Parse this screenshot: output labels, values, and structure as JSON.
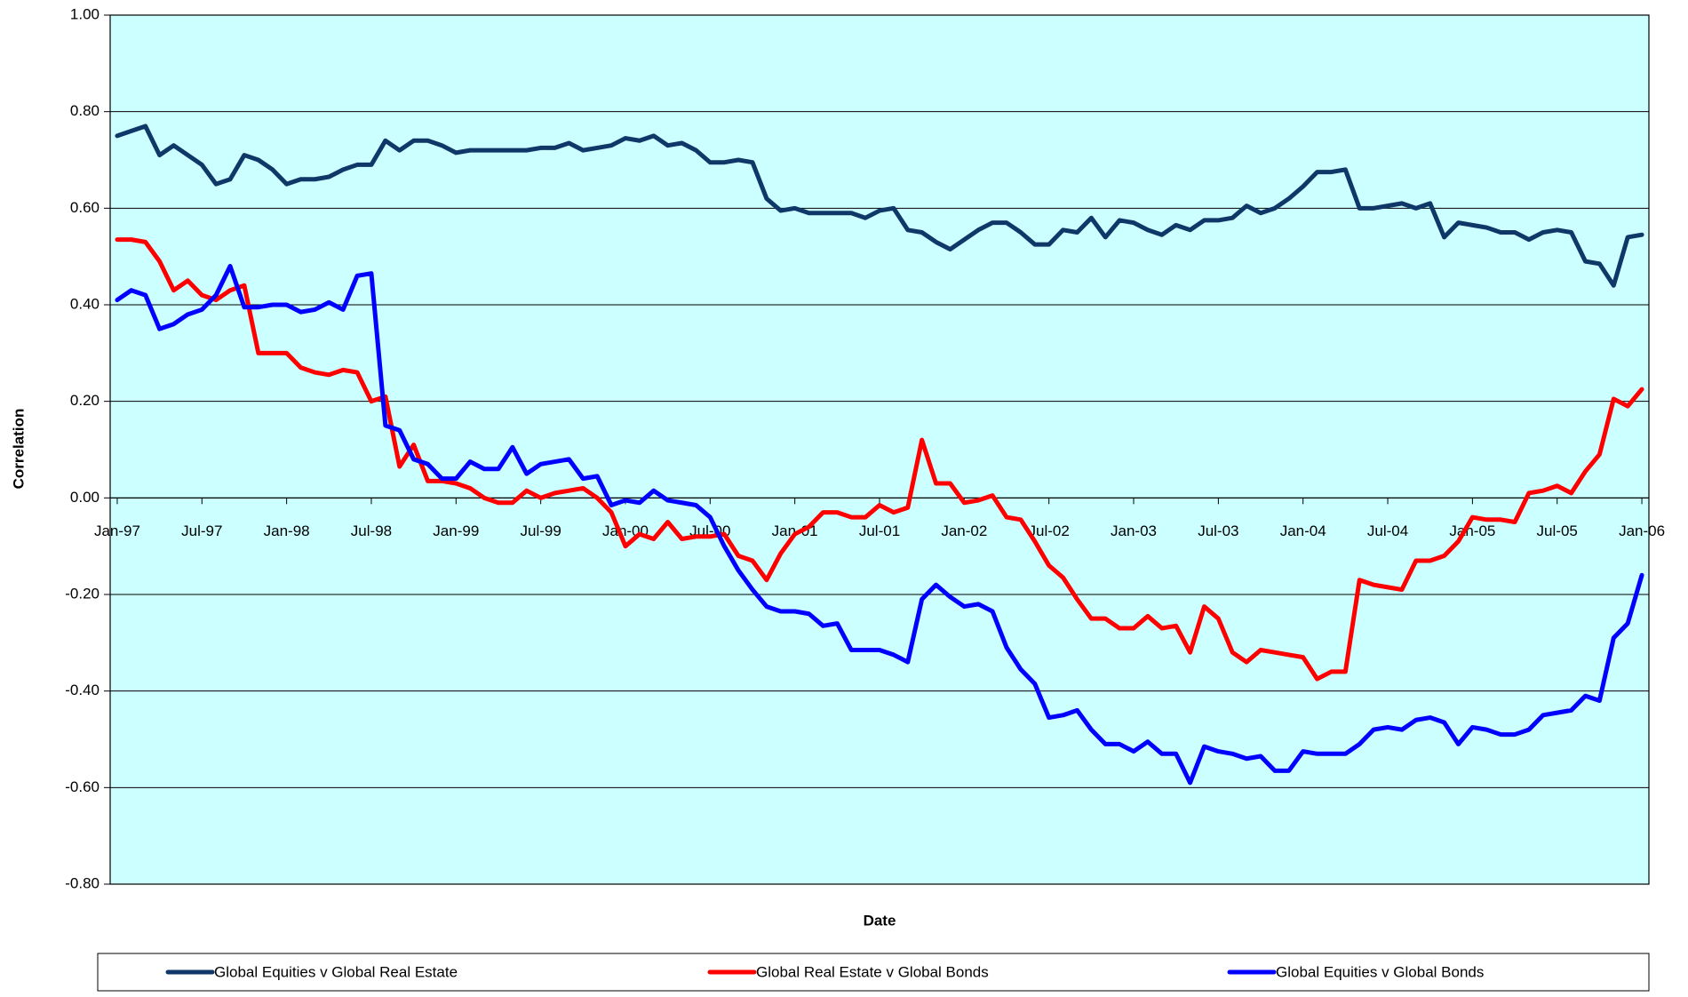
{
  "chart_data": {
    "type": "line",
    "x_label": "Date",
    "y_label": "Correlation",
    "ylim": [
      -0.8,
      1.0
    ],
    "yticks": [
      {
        "value": -0.8,
        "label": "-0.80"
      },
      {
        "value": -0.6,
        "label": "-0.60"
      },
      {
        "value": -0.4,
        "label": "-0.40"
      },
      {
        "value": -0.2,
        "label": "-0.20"
      },
      {
        "value": 0,
        "label": "0.00"
      },
      {
        "value": 0.2,
        "label": "0.20"
      },
      {
        "value": 0.4,
        "label": "0.40"
      },
      {
        "value": 0.6,
        "label": "0.60"
      },
      {
        "value": 0.8,
        "label": "0.80"
      },
      {
        "value": 1.0,
        "label": "1.00"
      }
    ],
    "grid": true,
    "legend": "bottom",
    "background": "#ccffff",
    "categories": [
      "Jan-97",
      null,
      null,
      null,
      null,
      null,
      "Jul-97",
      null,
      null,
      null,
      null,
      null,
      "Jan-98",
      null,
      null,
      null,
      null,
      null,
      "Jul-98",
      null,
      null,
      null,
      null,
      null,
      "Jan-99",
      null,
      null,
      null,
      null,
      null,
      "Jul-99",
      null,
      null,
      null,
      null,
      null,
      "Jan-00",
      null,
      null,
      null,
      null,
      null,
      "Jul-00",
      null,
      null,
      null,
      null,
      null,
      "Jan-01",
      null,
      null,
      null,
      null,
      null,
      "Jul-01",
      null,
      null,
      null,
      null,
      null,
      "Jan-02",
      null,
      null,
      null,
      null,
      null,
      "Jul-02",
      null,
      null,
      null,
      null,
      null,
      "Jan-03",
      null,
      null,
      null,
      null,
      null,
      "Jul-03",
      null,
      null,
      null,
      null,
      null,
      "Jan-04",
      null,
      null,
      null,
      null,
      null,
      "Jul-04",
      null,
      null,
      null,
      null,
      null,
      "Jan-05",
      null,
      null,
      null,
      null,
      null,
      "Jul-05",
      null,
      null,
      null,
      null,
      null,
      "Jan-06"
    ],
    "series": [
      {
        "name": "Global Equities v Global Real Estate",
        "color": "#0f3868",
        "values": [
          0.75,
          0.76,
          0.77,
          0.71,
          0.73,
          0.71,
          0.69,
          0.65,
          0.66,
          0.71,
          0.7,
          0.68,
          0.65,
          0.66,
          0.66,
          0.665,
          0.68,
          0.69,
          0.69,
          0.74,
          0.72,
          0.74,
          0.74,
          0.73,
          0.715,
          0.72,
          0.72,
          0.72,
          0.72,
          0.72,
          0.725,
          0.725,
          0.735,
          0.72,
          0.725,
          0.73,
          0.745,
          0.74,
          0.75,
          0.73,
          0.735,
          0.72,
          0.695,
          0.695,
          0.7,
          0.695,
          0.62,
          0.595,
          0.6,
          0.59,
          0.59,
          0.59,
          0.59,
          0.58,
          0.595,
          0.6,
          0.555,
          0.55,
          0.53,
          0.515,
          0.535,
          0.555,
          0.57,
          0.57,
          0.55,
          0.525,
          0.525,
          0.555,
          0.55,
          0.58,
          0.54,
          0.575,
          0.57,
          0.555,
          0.545,
          0.565,
          0.555,
          0.575,
          0.575,
          0.58,
          0.605,
          0.59,
          0.6,
          0.62,
          0.645,
          0.675,
          0.675,
          0.68,
          0.6,
          0.6,
          0.605,
          0.61,
          0.6,
          0.61,
          0.54,
          0.57,
          0.565,
          0.56,
          0.55,
          0.55,
          0.535,
          0.55,
          0.555,
          0.55,
          0.49,
          0.485,
          0.44,
          0.54,
          0.545
        ]
      },
      {
        "name": "Global Real Estate v Global Bonds",
        "color": "#ff0000",
        "values": [
          0.535,
          0.535,
          0.53,
          0.49,
          0.43,
          0.45,
          0.42,
          0.41,
          0.43,
          0.44,
          0.3,
          0.3,
          0.3,
          0.27,
          0.26,
          0.255,
          0.265,
          0.26,
          0.2,
          0.21,
          0.065,
          0.11,
          0.035,
          0.035,
          0.03,
          0.02,
          0.0,
          -0.01,
          -0.01,
          0.015,
          0.0,
          0.01,
          0.015,
          0.02,
          0.0,
          -0.03,
          -0.1,
          -0.075,
          -0.085,
          -0.05,
          -0.085,
          -0.08,
          -0.08,
          -0.075,
          -0.12,
          -0.13,
          -0.17,
          -0.115,
          -0.075,
          -0.06,
          -0.03,
          -0.03,
          -0.04,
          -0.04,
          -0.015,
          -0.03,
          -0.02,
          0.12,
          0.03,
          0.03,
          -0.01,
          -0.005,
          0.005,
          -0.04,
          -0.045,
          -0.09,
          -0.14,
          -0.165,
          -0.21,
          -0.25,
          -0.25,
          -0.27,
          -0.27,
          -0.245,
          -0.27,
          -0.265,
          -0.32,
          -0.225,
          -0.25,
          -0.32,
          -0.34,
          -0.315,
          -0.32,
          -0.325,
          -0.33,
          -0.375,
          -0.36,
          -0.36,
          -0.17,
          -0.18,
          -0.185,
          -0.19,
          -0.13,
          -0.13,
          -0.12,
          -0.09,
          -0.04,
          -0.045,
          -0.045,
          -0.05,
          0.01,
          0.015,
          0.025,
          0.01,
          0.055,
          0.09,
          0.205,
          0.19,
          0.225
        ]
      },
      {
        "name": "Global Equities v Global Bonds",
        "color": "#0000ff",
        "values": [
          0.41,
          0.43,
          0.42,
          0.35,
          0.36,
          0.38,
          0.39,
          0.42,
          0.48,
          0.395,
          0.395,
          0.4,
          0.4,
          0.385,
          0.39,
          0.405,
          0.39,
          0.46,
          0.465,
          0.15,
          0.14,
          0.08,
          0.07,
          0.04,
          0.04,
          0.075,
          0.06,
          0.06,
          0.105,
          0.05,
          0.07,
          0.075,
          0.08,
          0.04,
          0.045,
          -0.015,
          -0.005,
          -0.01,
          0.015,
          -0.005,
          -0.01,
          -0.015,
          -0.04,
          -0.1,
          -0.15,
          -0.19,
          -0.225,
          -0.235,
          -0.235,
          -0.24,
          -0.265,
          -0.26,
          -0.315,
          -0.315,
          -0.315,
          -0.325,
          -0.34,
          -0.21,
          -0.18,
          -0.205,
          -0.225,
          -0.22,
          -0.235,
          -0.31,
          -0.355,
          -0.385,
          -0.455,
          -0.45,
          -0.44,
          -0.48,
          -0.51,
          -0.51,
          -0.525,
          -0.505,
          -0.53,
          -0.53,
          -0.59,
          -0.515,
          -0.525,
          -0.53,
          -0.54,
          -0.535,
          -0.565,
          -0.565,
          -0.525,
          -0.53,
          -0.53,
          -0.53,
          -0.51,
          -0.48,
          -0.475,
          -0.48,
          -0.46,
          -0.455,
          -0.465,
          -0.51,
          -0.475,
          -0.48,
          -0.49,
          -0.49,
          -0.48,
          -0.45,
          -0.445,
          -0.44,
          -0.41,
          -0.42,
          -0.29,
          -0.26,
          -0.16
        ]
      }
    ]
  }
}
